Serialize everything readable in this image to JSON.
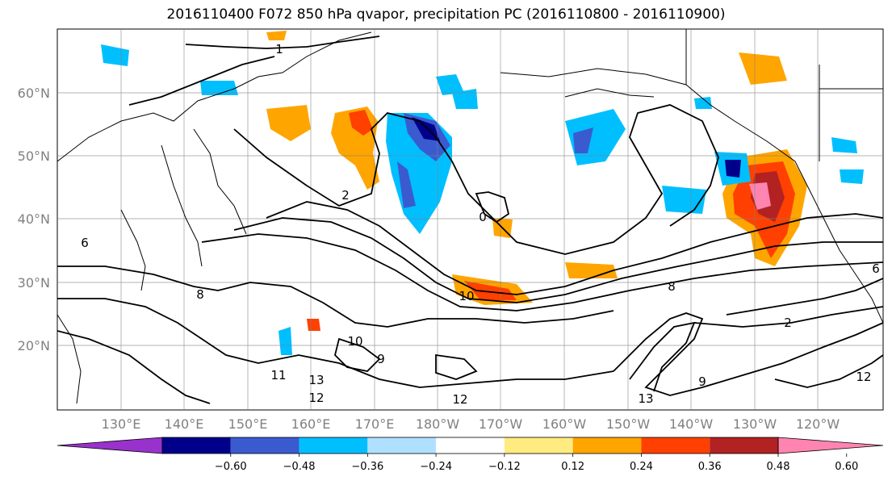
{
  "title": "2016110400 F072 850 hPa qvapor, precipitation PC (2016110800 - 2016110900)",
  "map": {
    "lat_labels": [
      "60°N",
      "50°N",
      "40°N",
      "30°N",
      "20°N"
    ],
    "lon_labels": [
      "130°E",
      "140°E",
      "150°E",
      "160°E",
      "170°E",
      "180°W",
      "170°W",
      "160°W",
      "150°W",
      "140°W",
      "130°W",
      "120°W"
    ],
    "contour_labels": [
      "1",
      "2",
      "0",
      "6",
      "8",
      "10",
      "12",
      "13",
      "9",
      "11",
      "10",
      "2",
      "6",
      "8",
      "12",
      "13",
      "9",
      "12"
    ]
  },
  "colorbar": {
    "ticks": [
      "−0.60",
      "−0.48",
      "−0.36",
      "−0.24",
      "−0.12",
      "0.12",
      "0.24",
      "0.36",
      "0.48",
      "0.60"
    ],
    "colors": [
      "#9932cc",
      "#00008b",
      "#3a5bd0",
      "#00bfff",
      "#b0e0ff",
      "#ffffff",
      "#ffeb80",
      "#ffa500",
      "#ff4000",
      "#b22222",
      "#ff85b0"
    ]
  }
}
